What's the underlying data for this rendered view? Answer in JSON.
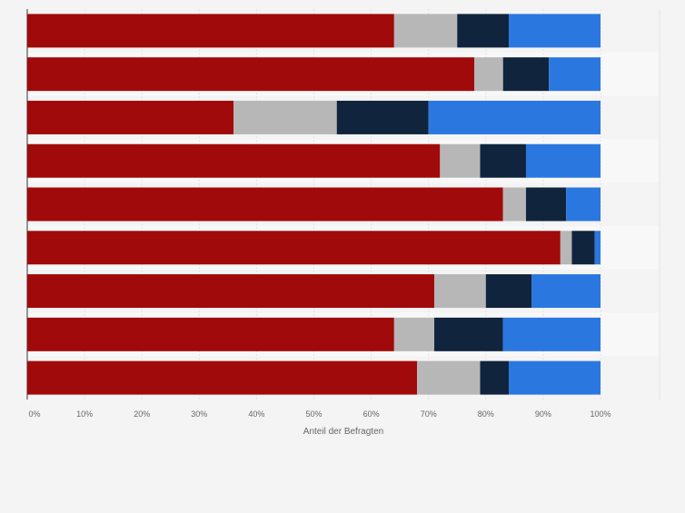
{
  "chart_data": {
    "type": "bar",
    "orientation": "horizontal",
    "stacked": true,
    "xlabel": "Anteil der Befragten",
    "xlim": [
      0,
      100
    ],
    "x_ticks": [
      "0%",
      "10%",
      "20%",
      "30%",
      "40%",
      "50%",
      "60%",
      "70%",
      "80%",
      "90%",
      "100%"
    ],
    "grid": true,
    "legend": "none",
    "categories": [
      "",
      "",
      "",
      "",
      "",
      "",
      "",
      "",
      ""
    ],
    "series": [
      {
        "color": "#a10a0a",
        "values": [
          64,
          78,
          36,
          72,
          83,
          93,
          71,
          64,
          68
        ]
      },
      {
        "color": "#b7b7b7",
        "values": [
          11,
          5,
          18,
          7,
          4,
          2,
          9,
          7,
          11
        ]
      },
      {
        "color": "#10243d",
        "values": [
          9,
          8,
          16,
          8,
          7,
          4,
          8,
          12,
          5
        ]
      },
      {
        "color": "#2a77e0",
        "values": [
          16,
          9,
          30,
          13,
          6,
          1,
          12,
          17,
          16
        ]
      }
    ]
  }
}
